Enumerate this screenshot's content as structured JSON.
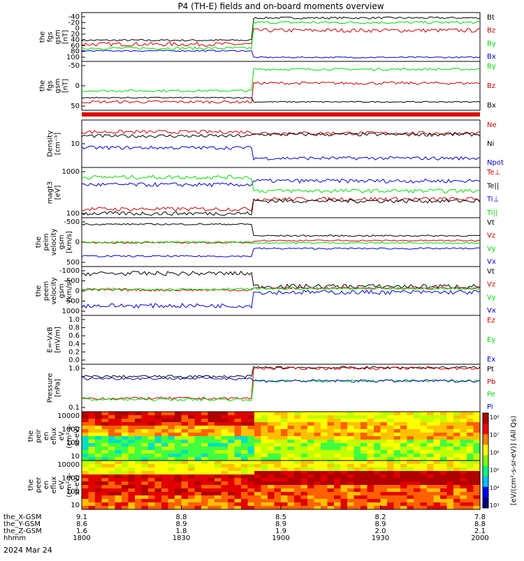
{
  "title": "P4 (TH-E) fields and on-board moments overview",
  "date_label": "2024 Mar 24",
  "colorbar_label": "[eV/(cm²-s-sr-eV)] (All Qs)",
  "colorbar_ticks": [
    "10³",
    "10⁴",
    "10⁵",
    "10⁶",
    "10⁷",
    "10⁸"
  ],
  "xaxis": {
    "rows": [
      {
        "label": "the_X-GSM",
        "values": [
          "9.1",
          "8.8",
          "8.5",
          "8.2",
          "7.8"
        ]
      },
      {
        "label": "the_Y-GSM",
        "values": [
          "8.6",
          "8.9",
          "8.9",
          "8.9",
          "8.8"
        ]
      },
      {
        "label": "the_Z-GSM",
        "values": [
          "1.6",
          "1.8",
          "1.9",
          "2.0",
          "2.1"
        ]
      },
      {
        "label": "hhmm",
        "values": [
          "1800",
          "1830",
          "1900",
          "1930",
          "2000"
        ]
      }
    ]
  },
  "chart_data": [
    {
      "type": "line",
      "ylabel": [
        "the",
        "fgs",
        "gsm",
        "[nT]"
      ],
      "ylim": [
        -40,
        100
      ],
      "ticks": [
        -40,
        -20,
        0,
        20,
        40,
        60,
        80,
        100
      ],
      "series": [
        {
          "name": "Bt",
          "color": "#000000",
          "pre": 20,
          "post": 88,
          "noise": 3
        },
        {
          "name": "Bz",
          "color": "#cc0000",
          "pre": 8,
          "post": 50,
          "noise": 6
        },
        {
          "name": "By",
          "color": "#00dd00",
          "pre": -4,
          "post": 74,
          "noise": 4
        },
        {
          "name": "Bx",
          "color": "#0000cc",
          "pre": -12,
          "post": -32,
          "noise": 2
        }
      ]
    },
    {
      "type": "line",
      "ylabel": [
        "the",
        "fgs",
        "gsm",
        "[nT]"
      ],
      "ylim": [
        -70,
        95
      ],
      "ticks": [
        -50,
        0,
        50
      ],
      "series": [
        {
          "name": "By",
          "color": "#00dd00",
          "pre": -5,
          "post": 72,
          "noise": 4
        },
        {
          "name": "Bz",
          "color": "#cc0000",
          "pre": -45,
          "post": 22,
          "noise": 5
        },
        {
          "name": "Bx",
          "color": "#000000",
          "pre": -30,
          "post": -45,
          "noise": 2
        }
      ]
    },
    {
      "type": "line",
      "ylabel": [
        "Density",
        "[cm⁻³]"
      ],
      "ylim": [
        1,
        50
      ],
      "ticks": [
        "10"
      ],
      "series": [
        {
          "name": "Ne",
          "color": "#cc0000",
          "pre": 20,
          "post": 18,
          "noise": 2
        },
        {
          "name": "Ni",
          "color": "#000000",
          "pre": 14,
          "post": 16,
          "noise": 2
        },
        {
          "name": "Npot",
          "color": "#0000cc",
          "pre": 5,
          "post": 2,
          "noise": 0.3
        }
      ]
    },
    {
      "type": "line",
      "ylabel": [
        "magt3",
        "[eV]"
      ],
      "ylim": [
        40,
        1500
      ],
      "ticks": [
        "1000",
        "100"
      ],
      "series": [
        {
          "name": "Te⊥",
          "color": "#cc0000",
          "pre": 70,
          "post": 150,
          "noise": 8
        },
        {
          "name": "Te||",
          "color": "#000000",
          "pre": 50,
          "post": 130,
          "noise": 6
        },
        {
          "name": "Ti⊥",
          "color": "#0000cc",
          "pre": 450,
          "post": 600,
          "noise": 60
        },
        {
          "name": "Ti||",
          "color": "#00dd00",
          "pre": 800,
          "post": 280,
          "noise": 90
        }
      ]
    },
    {
      "type": "line",
      "ylabel": [
        "the",
        "peim",
        "velocity",
        "gsm",
        "[km/s]"
      ],
      "ylim": [
        -900,
        900
      ],
      "ticks": [
        -500,
        0,
        500
      ],
      "series": [
        {
          "name": "Vt",
          "color": "#000000",
          "pre": 700,
          "post": 250,
          "noise": 30
        },
        {
          "name": "Vz",
          "color": "#cc0000",
          "pre": -20,
          "post": 60,
          "noise": 30
        },
        {
          "name": "Vy",
          "color": "#00dd00",
          "pre": 0,
          "post": -30,
          "noise": 30
        },
        {
          "name": "Vx",
          "color": "#0000cc",
          "pre": -550,
          "post": -250,
          "noise": 30
        }
      ]
    },
    {
      "type": "line",
      "ylabel": [
        "the",
        "peem",
        "velocity",
        "gsm",
        "[km/s]"
      ],
      "ylim": [
        -1300,
        1200
      ],
      "ticks": [
        -1000,
        -500,
        0,
        500,
        1000
      ],
      "series": [
        {
          "name": "Vt",
          "color": "#000000",
          "pre": 900,
          "post": 200,
          "noise": 120
        },
        {
          "name": "Vz",
          "color": "#cc0000",
          "pre": 0,
          "post": 100,
          "noise": 60
        },
        {
          "name": "Vy",
          "color": "#00dd00",
          "pre": 50,
          "post": 80,
          "noise": 60
        },
        {
          "name": "Vx",
          "color": "#0000cc",
          "pre": -850,
          "post": -120,
          "noise": 120
        }
      ]
    },
    {
      "type": "line",
      "ylabel": [
        "E=-VxB",
        "[mV/m]"
      ],
      "ylim": [
        -0.05,
        1.0
      ],
      "ticks": [
        "1.0",
        "0.8",
        "0.6",
        "0.4",
        "0.2",
        "0.0"
      ],
      "series": [
        {
          "name": "Ez",
          "color": "#cc0000"
        },
        {
          "name": "Ey",
          "color": "#00dd00"
        },
        {
          "name": "Ex",
          "color": "#0000cc"
        }
      ]
    },
    {
      "type": "line",
      "ylabel": [
        "Pressure",
        "[nPa]"
      ],
      "ylim": [
        0.02,
        3.5
      ],
      "ticks": [
        "1.0",
        "0.1"
      ],
      "series": [
        {
          "name": "Pt",
          "color": "#000000",
          "pre": 1.0,
          "post": 2.8,
          "noise": 0.15
        },
        {
          "name": "Pb",
          "color": "#cc0000",
          "pre": 0.08,
          "post": 2.6,
          "noise": 0.03
        },
        {
          "name": "Pe",
          "color": "#00dd00",
          "pre": 0.07,
          "post": 0.6,
          "noise": 0.02
        },
        {
          "name": "Pi",
          "color": "#0000cc",
          "pre": 0.8,
          "post": 0.6,
          "noise": 0.1
        }
      ]
    },
    {
      "type": "heatmap",
      "ylabel": [
        "the",
        "peir",
        "en",
        "eflux",
        "eV",
        "(cm²-s-",
        "sr-eV)"
      ],
      "ticks": [
        "10000",
        "1000",
        "100",
        "10"
      ]
    },
    {
      "type": "heatmap",
      "ylabel": [
        "the",
        "peer",
        "en",
        "eflux",
        "eV",
        "(cm²-s-",
        "sr-eV)"
      ],
      "ticks": [
        "10000",
        "1000",
        "100",
        "10"
      ]
    }
  ]
}
